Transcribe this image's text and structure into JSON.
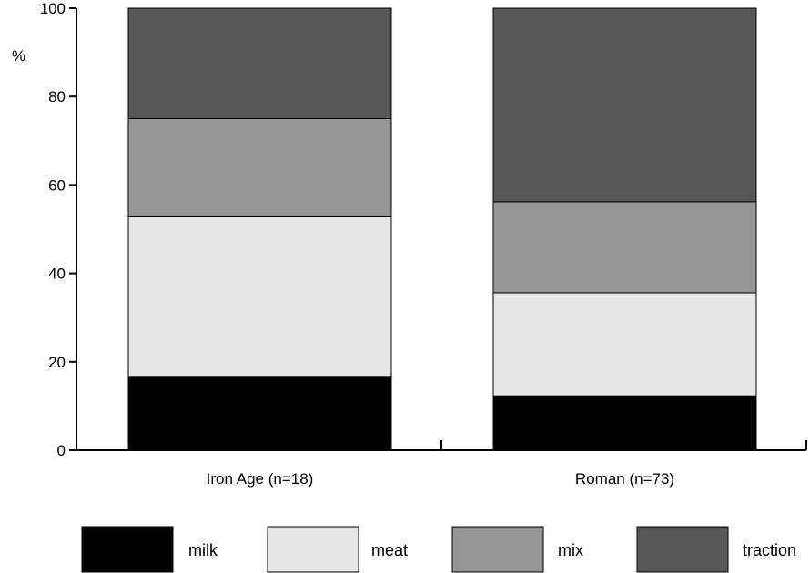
{
  "chart_data": {
    "type": "bar",
    "stacked": true,
    "title": "",
    "xlabel": "",
    "ylabel": "%",
    "ylim": [
      0,
      100
    ],
    "yticks": [
      0,
      20,
      40,
      60,
      80,
      100
    ],
    "grid": false,
    "legend_position": "bottom",
    "categories": [
      "Iron Age (n=18)",
      "Roman (n=73)"
    ],
    "series": [
      {
        "name": "milk",
        "color": "#000000",
        "values": [
          16.7,
          12.3
        ]
      },
      {
        "name": "meat",
        "color": "#e6e6e6",
        "values": [
          36.1,
          23.3
        ]
      },
      {
        "name": "mix",
        "color": "#969696",
        "values": [
          22.2,
          20.6
        ]
      },
      {
        "name": "traction",
        "color": "#575757",
        "values": [
          25.0,
          43.8
        ]
      }
    ]
  }
}
